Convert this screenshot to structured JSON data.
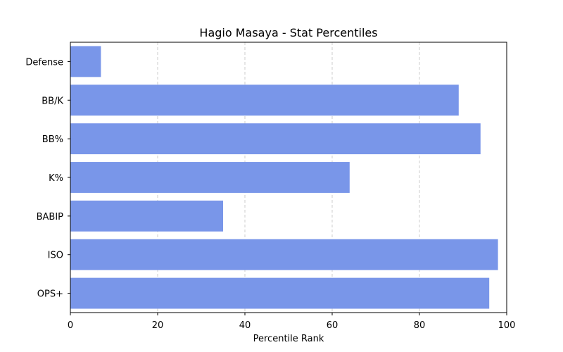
{
  "chart_data": {
    "type": "bar",
    "orientation": "horizontal",
    "title": "Hagio Masaya - Stat Percentiles",
    "xlabel": "Percentile Rank",
    "ylabel": "",
    "categories": [
      "OPS+",
      "ISO",
      "BABIP",
      "K%",
      "BB%",
      "BB/K",
      "Defense"
    ],
    "values": [
      96,
      98,
      35,
      64,
      94,
      89,
      7
    ],
    "xlim": [
      0,
      100
    ],
    "xticks": [
      0,
      20,
      40,
      60,
      80,
      100
    ],
    "grid": "vertical dashed",
    "bar_color": "#7996e9",
    "grid_color": "#c0c0c0"
  }
}
